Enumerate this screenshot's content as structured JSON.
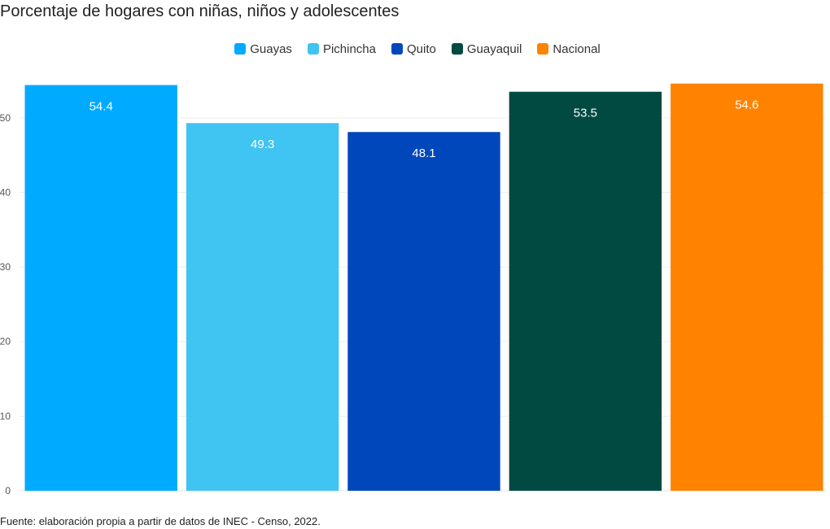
{
  "chart_data": {
    "type": "bar",
    "title": "Porcentaje de hogares con niñas, niños y adolescentes",
    "categories": [
      "Guayas",
      "Pichincha",
      "Quito",
      "Guayaquil",
      "Nacional"
    ],
    "values": [
      54.4,
      49.3,
      48.1,
      53.5,
      54.6
    ],
    "value_labels": [
      "54.4",
      "49.3",
      "48.1",
      "53.5",
      "54.6"
    ],
    "colors": [
      "#00aaff",
      "#40c4f2",
      "#0047bb",
      "#004a42",
      "#ff8200"
    ],
    "xlabel": "",
    "ylabel": "",
    "ylim": [
      0,
      55
    ],
    "yticks": [
      0,
      10,
      20,
      30,
      40,
      50
    ],
    "ytick_labels": [
      "0",
      "10",
      "20",
      "30",
      "40",
      "50"
    ],
    "grid": true,
    "legend_position": "top-center",
    "legend": [
      "Guayas",
      "Pichincha",
      "Quito",
      "Guayaquil",
      "Nacional"
    ],
    "source": "Fuente: elaboración propia a partir de datos de INEC - Censo, 2022."
  }
}
